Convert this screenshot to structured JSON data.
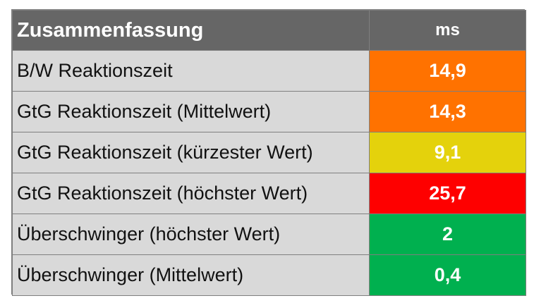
{
  "chart_data": {
    "type": "table",
    "columns": [
      "Zusammenfassung",
      "ms"
    ],
    "rows": [
      {
        "label": "B/W Reaktionszeit",
        "value": "14,9",
        "color": "#ff7200"
      },
      {
        "label": "GtG Reaktionszeit (Mittelwert)",
        "value": "14,3",
        "color": "#ff7200"
      },
      {
        "label": "GtG Reaktionszeit (kürzester Wert)",
        "value": "9,1",
        "color": "#e4d20c"
      },
      {
        "label": "GtG Reaktionszeit (höchster Wert)",
        "value": "25,7",
        "color": "#fe0000"
      },
      {
        "label": "Überschwinger (höchster Wert)",
        "value": "2",
        "color": "#00b04f"
      },
      {
        "label": "Überschwinger (Mittelwert)",
        "value": "0,4",
        "color": "#00b04f"
      }
    ]
  },
  "colors": {
    "header_bg": "#666666",
    "label_bg": "#d9d9d9",
    "border": "#7f7f7f"
  }
}
